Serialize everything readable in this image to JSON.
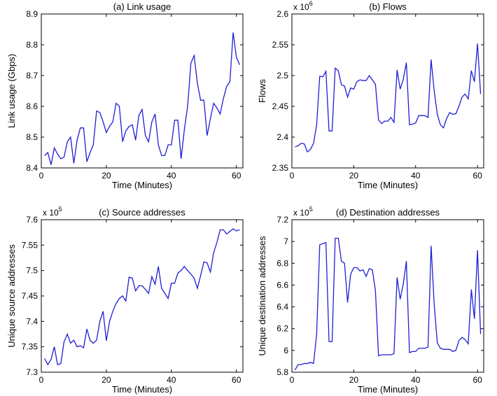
{
  "chart_data": [
    {
      "type": "line",
      "title": "(a) Link usage",
      "xlabel": "Time (Minutes)",
      "ylabel": "Link usage (Gbps)",
      "multiplier": null,
      "xlim": [
        0,
        62
      ],
      "ylim": [
        8.4,
        8.9
      ],
      "xticks": [
        0,
        20,
        40,
        60
      ],
      "xtick_labels": [
        "0",
        "20",
        "40",
        "60"
      ],
      "yticks": [
        8.4,
        8.5,
        8.6,
        8.7,
        8.8,
        8.9
      ],
      "ytick_labels": [
        "8.4",
        "8.5",
        "8.6",
        "8.7",
        "8.8",
        "8.9"
      ],
      "grid": false,
      "color": "#1f1fd6",
      "x": [
        1,
        2,
        3,
        4,
        5,
        6,
        7,
        8,
        9,
        10,
        11,
        12,
        13,
        14,
        15,
        16,
        17,
        18,
        19,
        20,
        21,
        22,
        23,
        24,
        25,
        26,
        27,
        28,
        29,
        30,
        31,
        32,
        33,
        34,
        35,
        36,
        37,
        38,
        39,
        40,
        41,
        42,
        43,
        44,
        45,
        46,
        47,
        48,
        49,
        50,
        51,
        52,
        53,
        54,
        55,
        56,
        57,
        58,
        59,
        60,
        61
      ],
      "values": [
        8.44,
        8.45,
        8.41,
        8.465,
        8.445,
        8.43,
        8.435,
        8.485,
        8.5,
        8.415,
        8.49,
        8.53,
        8.53,
        8.42,
        8.45,
        8.475,
        8.585,
        8.58,
        8.55,
        8.515,
        8.535,
        8.55,
        8.61,
        8.6,
        8.485,
        8.52,
        8.535,
        8.54,
        8.49,
        8.57,
        8.59,
        8.505,
        8.485,
        8.55,
        8.575,
        8.475,
        8.44,
        8.44,
        8.475,
        8.475,
        8.555,
        8.555,
        8.43,
        8.525,
        8.6,
        8.74,
        8.765,
        8.675,
        8.62,
        8.62,
        8.505,
        8.56,
        8.61,
        8.595,
        8.575,
        8.625,
        8.665,
        8.68,
        8.84,
        8.76,
        8.735
      ]
    },
    {
      "type": "line",
      "title": "(b) Flows",
      "xlabel": "Time (Minutes)",
      "ylabel": "Flows",
      "multiplier": {
        "base": "x 10",
        "exp": "6"
      },
      "xlim": [
        0,
        62
      ],
      "ylim": [
        2.35,
        2.6
      ],
      "xticks": [
        0,
        20,
        40,
        60
      ],
      "xtick_labels": [
        "0",
        "20",
        "40",
        "60"
      ],
      "yticks": [
        2.35,
        2.4,
        2.45,
        2.5,
        2.55,
        2.6
      ],
      "ytick_labels": [
        "2.35",
        "2.4",
        "2.45",
        "2.5",
        "2.55",
        "2.6"
      ],
      "grid": false,
      "color": "#1f1fd6",
      "x": [
        1,
        2,
        3,
        4,
        5,
        6,
        7,
        8,
        9,
        10,
        11,
        12,
        13,
        14,
        15,
        16,
        17,
        18,
        19,
        20,
        21,
        22,
        23,
        24,
        25,
        26,
        27,
        28,
        29,
        30,
        31,
        32,
        33,
        34,
        35,
        36,
        37,
        38,
        39,
        40,
        41,
        42,
        43,
        44,
        45,
        46,
        47,
        48,
        49,
        50,
        51,
        52,
        53,
        54,
        55,
        56,
        57,
        58,
        59,
        60,
        61
      ],
      "values": [
        2.384,
        2.386,
        2.39,
        2.389,
        2.376,
        2.38,
        2.39,
        2.42,
        2.499,
        2.498,
        2.507,
        2.41,
        2.41,
        2.512,
        2.508,
        2.485,
        2.483,
        2.465,
        2.48,
        2.478,
        2.49,
        2.493,
        2.492,
        2.492,
        2.5,
        2.493,
        2.486,
        2.428,
        2.422,
        2.426,
        2.426,
        2.432,
        2.424,
        2.509,
        2.478,
        2.494,
        2.521,
        2.42,
        2.421,
        2.423,
        2.435,
        2.435,
        2.435,
        2.432,
        2.526,
        2.475,
        2.437,
        2.42,
        2.415,
        2.43,
        2.44,
        2.437,
        2.438,
        2.45,
        2.465,
        2.47,
        2.462,
        2.508,
        2.49,
        2.552,
        2.47
      ]
    },
    {
      "type": "line",
      "title": "(c) Source addresses",
      "xlabel": "Time (Minutes)",
      "ylabel": "Unique source addresses",
      "multiplier": {
        "base": "x 10",
        "exp": "5"
      },
      "xlim": [
        0,
        62
      ],
      "ylim": [
        7.3,
        7.6
      ],
      "xticks": [
        0,
        20,
        40,
        60
      ],
      "xtick_labels": [
        "0",
        "20",
        "40",
        "60"
      ],
      "yticks": [
        7.3,
        7.35,
        7.4,
        7.45,
        7.5,
        7.55,
        7.6
      ],
      "ytick_labels": [
        "7.3",
        "7.35",
        "7.4",
        "7.45",
        "7.5",
        "7.55",
        "7.6"
      ],
      "grid": false,
      "color": "#1f1fd6",
      "x": [
        1,
        2,
        3,
        4,
        5,
        6,
        7,
        8,
        9,
        10,
        11,
        12,
        13,
        14,
        15,
        16,
        17,
        18,
        19,
        20,
        21,
        22,
        23,
        24,
        25,
        26,
        27,
        28,
        29,
        30,
        31,
        32,
        33,
        34,
        35,
        36,
        37,
        38,
        39,
        40,
        41,
        42,
        43,
        44,
        45,
        46,
        47,
        48,
        49,
        50,
        51,
        52,
        53,
        54,
        55,
        56,
        57,
        58,
        59,
        60,
        61
      ],
      "values": [
        7.327,
        7.315,
        7.325,
        7.35,
        7.315,
        7.317,
        7.36,
        7.375,
        7.357,
        7.363,
        7.35,
        7.352,
        7.348,
        7.385,
        7.363,
        7.357,
        7.363,
        7.4,
        7.42,
        7.362,
        7.4,
        7.42,
        7.435,
        7.445,
        7.45,
        7.44,
        7.487,
        7.485,
        7.46,
        7.47,
        7.47,
        7.463,
        7.455,
        7.488,
        7.473,
        7.508,
        7.465,
        7.455,
        7.445,
        7.475,
        7.475,
        7.495,
        7.5,
        7.508,
        7.5,
        7.493,
        7.485,
        7.465,
        7.49,
        7.517,
        7.515,
        7.497,
        7.535,
        7.555,
        7.58,
        7.58,
        7.572,
        7.577,
        7.582,
        7.578,
        7.58
      ]
    },
    {
      "type": "line",
      "title": "(d) Destination addresses",
      "xlabel": "Time (Minutes)",
      "ylabel": "Unique destination addresses",
      "multiplier": {
        "base": "x 10",
        "exp": "5"
      },
      "xlim": [
        0,
        62
      ],
      "ylim": [
        5.8,
        7.2
      ],
      "xticks": [
        0,
        20,
        40,
        60
      ],
      "xtick_labels": [
        "0",
        "20",
        "40",
        "60"
      ],
      "yticks": [
        5.8,
        6.0,
        6.2,
        6.4,
        6.6,
        6.8,
        7.0,
        7.2
      ],
      "ytick_labels": [
        "5.8",
        "6",
        "6.2",
        "6.4",
        "6.6",
        "6.8",
        "7",
        "7.2"
      ],
      "grid": false,
      "color": "#1f1fd6",
      "x": [
        1,
        2,
        3,
        4,
        5,
        6,
        7,
        8,
        9,
        10,
        11,
        12,
        13,
        14,
        15,
        16,
        17,
        18,
        19,
        20,
        21,
        22,
        23,
        24,
        25,
        26,
        27,
        28,
        29,
        30,
        31,
        32,
        33,
        34,
        35,
        36,
        37,
        38,
        39,
        40,
        41,
        42,
        43,
        44,
        45,
        46,
        47,
        48,
        49,
        50,
        51,
        52,
        53,
        54,
        55,
        56,
        57,
        58,
        59,
        60,
        61
      ],
      "values": [
        5.82,
        5.87,
        5.87,
        5.88,
        5.88,
        5.89,
        5.88,
        6.15,
        6.97,
        6.98,
        6.99,
        6.08,
        6.08,
        7.03,
        7.03,
        6.82,
        6.8,
        6.44,
        6.7,
        6.76,
        6.76,
        6.73,
        6.74,
        6.68,
        6.75,
        6.74,
        6.55,
        5.95,
        5.96,
        5.96,
        5.96,
        5.96,
        5.97,
        6.67,
        6.47,
        6.61,
        6.82,
        5.98,
        5.99,
        5.99,
        6.02,
        6.02,
        6.02,
        6.03,
        6.96,
        6.42,
        6.07,
        6.02,
        6.01,
        6.01,
        6.01,
        5.99,
        6.0,
        6.09,
        6.12,
        6.1,
        6.06,
        6.56,
        6.29,
        6.92,
        6.15
      ]
    }
  ]
}
